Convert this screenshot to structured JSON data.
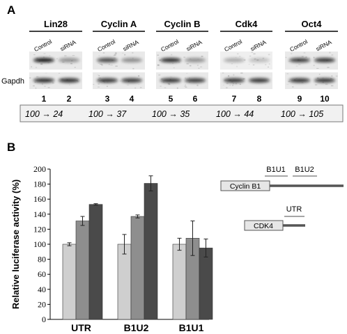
{
  "panel_a": {
    "label": "A",
    "genes": [
      "Lin28",
      "Cyclin A",
      "Cyclin B",
      "Cdk4",
      "Oct4"
    ],
    "lanes": [
      "Control",
      "siRNA"
    ],
    "loading_control": "Gapdh",
    "lane_numbers": [
      "1",
      "2",
      "3",
      "4",
      "5",
      "6",
      "7",
      "8",
      "9",
      "10"
    ],
    "ratios": [
      {
        "from": "100",
        "to": "24"
      },
      {
        "from": "100",
        "to": "37"
      },
      {
        "from": "100",
        "to": "35"
      },
      {
        "from": "100",
        "to": "44"
      },
      {
        "from": "100",
        "to": "105"
      }
    ],
    "arrow": "→"
  },
  "panel_b": {
    "label": "B",
    "diagram": {
      "cyclin_b1_label": "Cyclin B1",
      "cdk4_label": "CDK4",
      "segments": [
        "B1U1",
        "B1U2",
        "UTR"
      ]
    }
  },
  "chart_data": {
    "type": "bar",
    "categories": [
      "UTR",
      "B1U2",
      "B1U1"
    ],
    "ylabel": "Relative luciferase activity (%)",
    "ylim": [
      0,
      200
    ],
    "yticks": [
      "0",
      "20",
      "40",
      "60",
      "80",
      "100",
      "120",
      "140",
      "160",
      "180",
      "200"
    ],
    "grid": false,
    "colors": [
      "#cfcfcf",
      "#8e8e8e",
      "#4a4a4a"
    ],
    "series": [
      {
        "values": [
          100,
          100,
          100
        ],
        "errors": [
          2,
          13,
          8
        ]
      },
      {
        "values": [
          131,
          137,
          108
        ],
        "errors": [
          6,
          2,
          23
        ]
      },
      {
        "values": [
          153,
          181,
          95
        ],
        "errors": [
          1,
          10,
          12
        ]
      }
    ]
  }
}
